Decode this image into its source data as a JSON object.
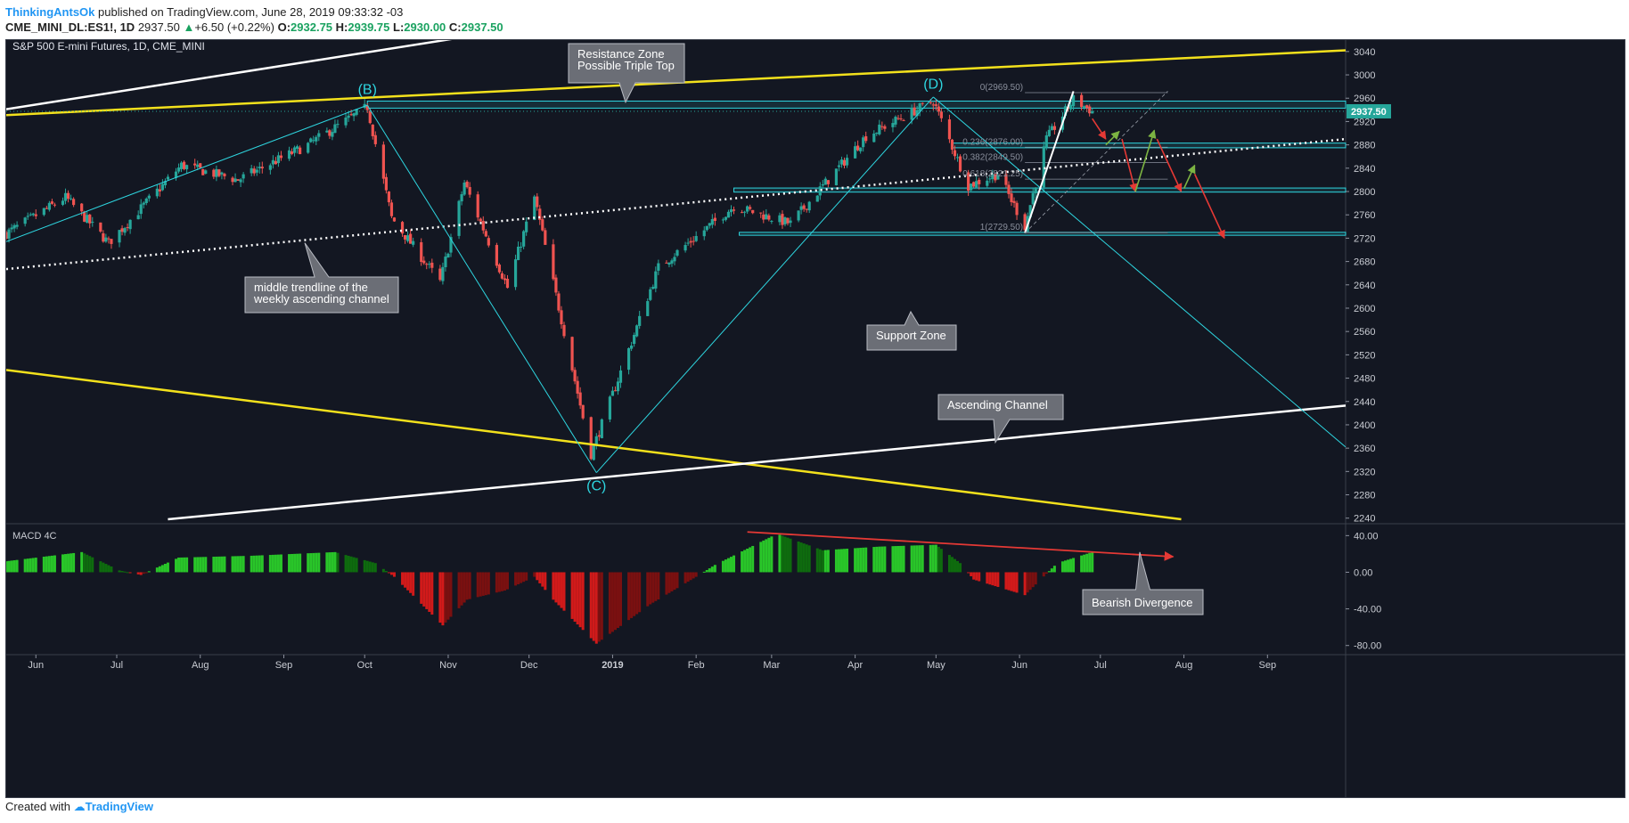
{
  "header": {
    "author": "ThinkingAntsOk",
    "published": "published on TradingView.com, June 28, 2019 09:33:32 -03",
    "symbol": "CME_MINI_DL:ES1!, 1D",
    "last": "2937.50",
    "change": "+6.50 (+0.22%)",
    "o_label": "O:",
    "o": "2932.75",
    "h_label": "H:",
    "h": "2939.75",
    "l_label": "L:",
    "l": "2930.00",
    "c_label": "C:",
    "c": "2937.50"
  },
  "footer": {
    "created_with": "Created with",
    "brand": "TradingView"
  },
  "colors": {
    "bg": "#131722",
    "up": "#26a69a",
    "down": "#ef5350",
    "yellow": "#f3e11c",
    "cyan": "#2ed6e0",
    "white": "#e8e8e8",
    "macd_up": "#19b019",
    "macd_down": "#c91414"
  },
  "chart_data": [
    {
      "type": "candlestick",
      "title": "S&P 500 E-mini Futures, 1D, CME_MINI",
      "x_ticks": [
        "Jun",
        "Jul",
        "Aug",
        "Sep",
        "Oct",
        "Nov",
        "Dec",
        "2019",
        "Feb",
        "Mar",
        "Apr",
        "May",
        "Jun",
        "Jul",
        "Aug",
        "Sep"
      ],
      "x_range": [
        "2018-05-21",
        "2019-09-30"
      ],
      "y_ticks": [
        3040,
        3000,
        2960,
        2920,
        2880,
        2840,
        2800,
        2760,
        2720,
        2680,
        2640,
        2600,
        2560,
        2520,
        2480,
        2440,
        2400,
        2360,
        2320,
        2280,
        2240
      ],
      "ylim": [
        2235,
        3052
      ],
      "last_price": "2937.50",
      "price_path": [
        {
          "date": "2018-05-21",
          "value": 2728
        },
        {
          "date": "2018-06-12",
          "value": 2790
        },
        {
          "date": "2018-06-28",
          "value": 2712
        },
        {
          "date": "2018-07-25",
          "value": 2845
        },
        {
          "date": "2018-08-15",
          "value": 2820
        },
        {
          "date": "2018-09-10",
          "value": 2880
        },
        {
          "date": "2018-10-02",
          "value": 2945
        },
        {
          "date": "2018-10-11",
          "value": 2755
        },
        {
          "date": "2018-10-29",
          "value": 2645
        },
        {
          "date": "2018-11-07",
          "value": 2815
        },
        {
          "date": "2018-11-23",
          "value": 2635
        },
        {
          "date": "2018-12-03",
          "value": 2790
        },
        {
          "date": "2018-12-24",
          "value": 2350
        },
        {
          "date": "2019-01-18",
          "value": 2670
        },
        {
          "date": "2019-02-15",
          "value": 2775
        },
        {
          "date": "2019-03-08",
          "value": 2745
        },
        {
          "date": "2019-04-05",
          "value": 2895
        },
        {
          "date": "2019-04-30",
          "value": 2955
        },
        {
          "date": "2019-05-13",
          "value": 2810
        },
        {
          "date": "2019-05-24",
          "value": 2830
        },
        {
          "date": "2019-06-03",
          "value": 2740
        },
        {
          "date": "2019-06-11",
          "value": 2890
        },
        {
          "date": "2019-06-21",
          "value": 2958
        },
        {
          "date": "2019-06-28",
          "value": 2937.5
        }
      ],
      "annotations": [
        {
          "id": "res",
          "text": [
            "Resistance Zone",
            "Possible Triple Top"
          ]
        },
        {
          "id": "mid",
          "text": [
            "middle trendline of the",
            "weekly ascending channel"
          ]
        },
        {
          "id": "sup",
          "text": [
            "Support Zone"
          ]
        },
        {
          "id": "asc",
          "text": [
            "Ascending Channel"
          ]
        }
      ],
      "wave_labels": [
        "(B)",
        "(C)",
        "(D)"
      ],
      "fib_levels": [
        {
          "label": "0(2969.50)",
          "value": 2969.5
        },
        {
          "label": "0.236(2876.00)",
          "value": 2876.0
        },
        {
          "label": "0.382(2849.50)",
          "value": 2849.5
        },
        {
          "label": "0.618(2821.25)",
          "value": 2821.25
        },
        {
          "label": "1(2729.50)",
          "value": 2729.5
        }
      ],
      "zones": [
        {
          "name": "resistance",
          "from": 2943,
          "to": 2955
        },
        {
          "name": "fib-0.236",
          "from": 2875,
          "to": 2883
        },
        {
          "name": "support",
          "from": 2799,
          "to": 2806
        },
        {
          "name": "bottom",
          "from": 2725,
          "to": 2730
        }
      ]
    },
    {
      "type": "bar",
      "title": "MACD 4C",
      "y_ticks": [
        "40.00",
        "0.00",
        "-40.00",
        "-80.00"
      ],
      "ylim": [
        -90,
        52
      ],
      "histogram_path": [
        {
          "date": "2018-05-21",
          "value": 12
        },
        {
          "date": "2018-06-18",
          "value": 22
        },
        {
          "date": "2018-07-02",
          "value": 2
        },
        {
          "date": "2018-07-10",
          "value": -3
        },
        {
          "date": "2018-07-24",
          "value": 16
        },
        {
          "date": "2018-08-20",
          "value": 18
        },
        {
          "date": "2018-09-20",
          "value": 22
        },
        {
          "date": "2018-10-05",
          "value": 10
        },
        {
          "date": "2018-10-12",
          "value": -5
        },
        {
          "date": "2018-10-30",
          "value": -58
        },
        {
          "date": "2018-11-08",
          "value": -30
        },
        {
          "date": "2018-11-22",
          "value": -20
        },
        {
          "date": "2018-12-03",
          "value": -5
        },
        {
          "date": "2018-12-10",
          "value": -30
        },
        {
          "date": "2018-12-26",
          "value": -78
        },
        {
          "date": "2019-01-15",
          "value": -35
        },
        {
          "date": "2019-02-01",
          "value": -5
        },
        {
          "date": "2019-02-08",
          "value": 8
        },
        {
          "date": "2019-03-03",
          "value": 42
        },
        {
          "date": "2019-03-20",
          "value": 24
        },
        {
          "date": "2019-04-10",
          "value": 28
        },
        {
          "date": "2019-05-01",
          "value": 30
        },
        {
          "date": "2019-05-10",
          "value": 10
        },
        {
          "date": "2019-05-15",
          "value": -8
        },
        {
          "date": "2019-06-03",
          "value": -25
        },
        {
          "date": "2019-06-15",
          "value": 10
        },
        {
          "date": "2019-06-28",
          "value": 22
        }
      ],
      "annotation": "Bearish Divergence"
    }
  ]
}
